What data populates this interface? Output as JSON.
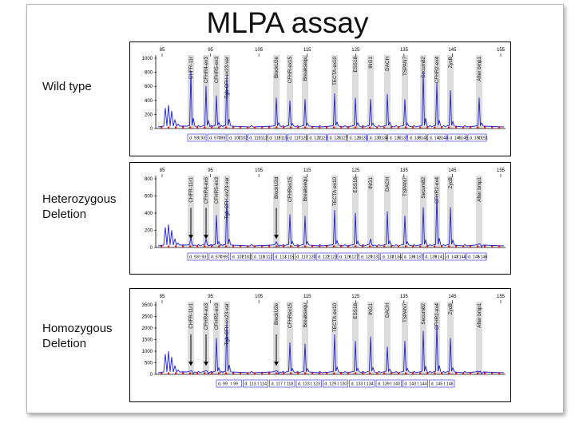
{
  "title": "MLPA assay",
  "colors": {
    "trace": "#1e1ed2",
    "marker": "#e21a1a",
    "shade": "#dcdcdc",
    "panel_border": "#000000"
  },
  "chart_data": [
    {
      "type": "line",
      "row_label": [
        "Wild type"
      ],
      "xticks": [
        "85",
        "95",
        "105",
        "115",
        "125",
        "135",
        "145",
        "155"
      ],
      "yticks": [
        "1000",
        "800",
        "600",
        "400",
        "200",
        "0"
      ],
      "probes": [
        "CHFR-11r",
        "CFHR4-ex3",
        "CFHR5-ex3",
        "Tgb-CFH-ex23-var",
        "BlockU2e",
        "CFHR-ex15",
        "Breaksequ",
        "TECTA-ex10",
        "ESS18",
        "ING1",
        "DACH",
        "TSPAN7",
        "Secum82",
        "CFHR2-ex4",
        "ZycB",
        "After bmp1"
      ],
      "arrows": [],
      "sizes": [
        {
          "l": "d. 93",
          "m": "t 93"
        },
        {
          "l": "d. 570",
          "m": "t 99"
        },
        {
          "l": "d. 102",
          "m": "t 102"
        },
        {
          "l": "d. 110",
          "m": "t 112"
        },
        {
          "l": "d. 113",
          "m": "t 115"
        },
        {
          "l": "d. 117",
          "m": "t 120"
        },
        {
          "l": "d. 122",
          "m": "t 123"
        },
        {
          "l": "d. 126",
          "m": "t 127"
        },
        {
          "l": "d. 129",
          "m": "t 131"
        },
        {
          "l": "d. 133",
          "m": "t 134"
        },
        {
          "l": "d. 136",
          "m": "t 137"
        },
        {
          "l": "d. 139",
          "m": "t 141"
        },
        {
          "l": "d. 143",
          "m": "t 144"
        },
        {
          "l": "d. 145",
          "m": "t 146"
        },
        {
          "l": "d. 150",
          "m": "t 151"
        }
      ]
    },
    {
      "type": "line",
      "row_label": [
        "Heterozygous",
        "Deletion"
      ],
      "xticks": [
        "85",
        "95",
        "105",
        "115",
        "125",
        "135",
        "145",
        "155"
      ],
      "yticks": [
        "800",
        "600",
        "400",
        "200",
        "0"
      ],
      "probes": [
        "CHFR-11r1",
        "CFHR4-ex6",
        "CFHR5-ex3",
        "Tgb-CFH-ex23-var",
        "BlockU2d",
        "CFHRex15",
        "Breaksequ",
        "TECTA-ex10",
        "ESS18",
        "ING1",
        "DACH",
        "TSPAN7",
        "Secum82",
        "CFHR2-ex4",
        "ZycB",
        "After bmp1"
      ],
      "arrows": [
        0,
        1,
        4
      ],
      "sizes": [
        {
          "l": "d. 93",
          "m": "t 93"
        },
        {
          "l": "d. 570",
          "m": "t 99"
        },
        {
          "l": "d. 102",
          "m": "t 102"
        },
        {
          "l": "d. 110",
          "m": "t 112"
        },
        {
          "l": "d. 113",
          "m": "t 115"
        },
        {
          "l": "d. 117",
          "m": "t 120"
        },
        {
          "l": "d. 122",
          "m": "t 123"
        },
        {
          "l": "d. 126",
          "m": "t 127"
        },
        {
          "l": "d. 129",
          "m": "t 131"
        },
        {
          "l": "d. 133",
          "m": "t 134"
        },
        {
          "l": "d. 136",
          "m": "t 137"
        },
        {
          "l": "d. 139",
          "m": "t 141"
        },
        {
          "l": "d. 143",
          "m": "t 144"
        },
        {
          "l": "d. 145",
          "m": "t 146"
        }
      ]
    },
    {
      "type": "line",
      "row_label": [
        "Homozygous",
        "Deletion"
      ],
      "xticks": [
        "85",
        "95",
        "105",
        "115",
        "125",
        "135",
        "145",
        "155"
      ],
      "yticks": [
        "3500",
        "2500",
        "2000",
        "1500",
        "1000",
        "500",
        "0"
      ],
      "probes": [
        "CHFR-11r1",
        "CFHR4-ex3",
        "CFHR5-ex3",
        "Tgb-CFH-ex23-var",
        "BlockU2e",
        "CFHRex15",
        "Breaksequ",
        "TECTA-ex10",
        "ESS18",
        "ING1",
        "DACH",
        "TSPAN7",
        "Secum82",
        "CFHR2-ex4",
        "ZycB",
        "After bmp1"
      ],
      "arrows": [
        0,
        1,
        4
      ],
      "sizes": [
        {
          "l": "d. 99",
          "m": "t 99"
        },
        {
          "l": "d. 113",
          "m": "t 114"
        },
        {
          "l": "d. 117",
          "m": "t 118"
        },
        {
          "l": "d. 123",
          "m": "t 123"
        },
        {
          "l": "d. 129",
          "m": "t 130"
        },
        {
          "l": "d. 133",
          "m": "t 134"
        },
        {
          "l": "d. 139",
          "m": "t 140"
        },
        {
          "l": "d. 143",
          "m": "t 144"
        },
        {
          "l": "d. 145",
          "m": "t 146"
        }
      ]
    }
  ]
}
